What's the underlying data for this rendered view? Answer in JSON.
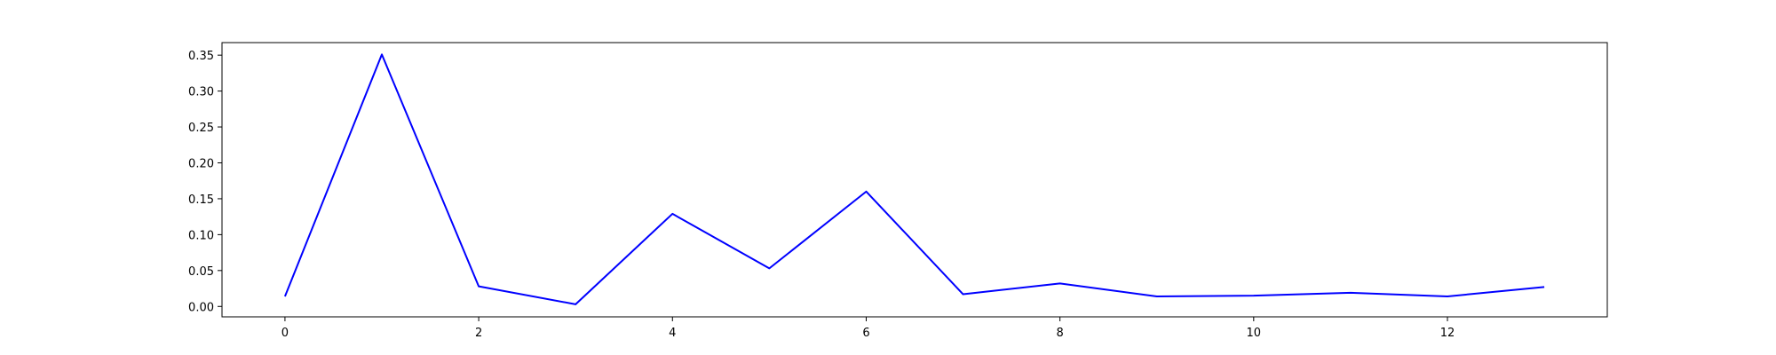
{
  "chart_data": {
    "type": "line",
    "title": "",
    "xlabel": "",
    "ylabel": "",
    "xlim": [
      -0.65,
      13.65
    ],
    "ylim": [
      -0.0145,
      0.3675
    ],
    "grid": false,
    "legend": "none",
    "x_ticks": [
      0,
      2,
      4,
      6,
      8,
      10,
      12
    ],
    "x_tick_labels": [
      "0",
      "2",
      "4",
      "6",
      "8",
      "10",
      "12"
    ],
    "y_ticks": [
      0.0,
      0.05,
      0.1,
      0.15,
      0.2,
      0.25,
      0.3,
      0.35
    ],
    "y_tick_labels": [
      "0.00",
      "0.05",
      "0.10",
      "0.15",
      "0.20",
      "0.25",
      "0.30",
      "0.35"
    ],
    "series": [
      {
        "color": "#0000ff",
        "x": [
          0,
          1,
          2,
          3,
          4,
          5,
          6,
          7,
          8,
          9,
          10,
          11,
          12,
          13
        ],
        "y": [
          0.014,
          0.351,
          0.028,
          0.003,
          0.129,
          0.053,
          0.16,
          0.017,
          0.032,
          0.014,
          0.015,
          0.019,
          0.014,
          0.027
        ]
      }
    ]
  }
}
